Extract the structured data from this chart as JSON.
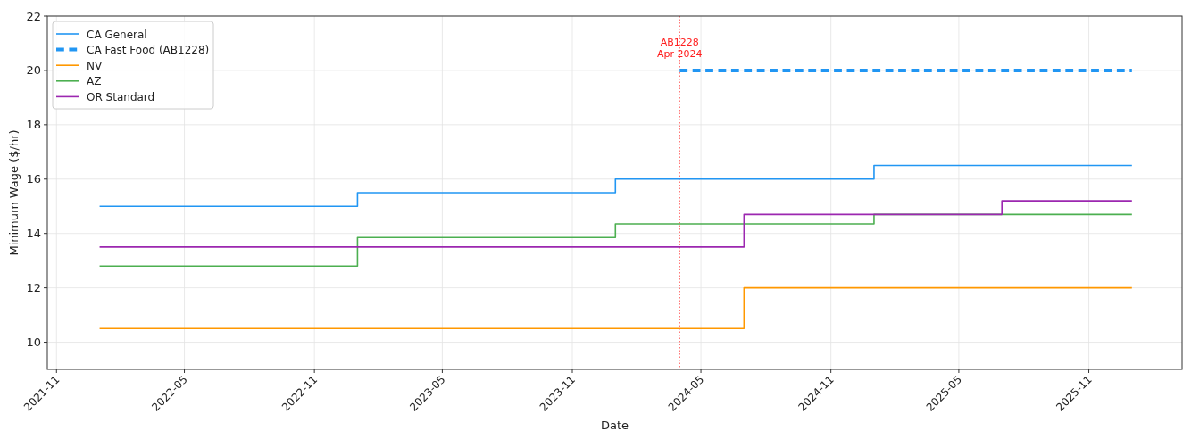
{
  "chart_data": {
    "type": "step",
    "xlabel": "Date",
    "ylabel": "Minimum Wage ($/hr)",
    "xlim": [
      "2021-10-19",
      "2026-03-13"
    ],
    "xticks": [
      {
        "value": "2021-11-01",
        "label": "2021-11"
      },
      {
        "value": "2022-05-01",
        "label": "2022-05"
      },
      {
        "value": "2022-11-01",
        "label": "2022-11"
      },
      {
        "value": "2023-05-01",
        "label": "2023-05"
      },
      {
        "value": "2023-11-01",
        "label": "2023-11"
      },
      {
        "value": "2024-05-01",
        "label": "2024-05"
      },
      {
        "value": "2024-11-01",
        "label": "2024-11"
      },
      {
        "value": "2025-05-01",
        "label": "2025-05"
      },
      {
        "value": "2025-11-01",
        "label": "2025-11"
      }
    ],
    "ylim": [
      9,
      22
    ],
    "yticks": [
      10,
      12,
      14,
      16,
      18,
      20,
      22
    ],
    "grid": true,
    "legend": "top left",
    "series": [
      {
        "name": "CA General",
        "color": "#2196f3",
        "x": [
          "2022-01-01",
          "2023-01-01",
          "2024-01-01",
          "2025-01-01",
          "2026-01-01"
        ],
        "values": [
          15,
          15.5,
          16,
          16.5,
          16.5
        ]
      },
      {
        "name": "CA Fast Food (AB1228)",
        "color": "#2196f3",
        "line_style": "dashed",
        "x": [
          "2024-04-01",
          "2026-01-01"
        ],
        "values": [
          20,
          20
        ]
      },
      {
        "name": "NV",
        "color": "#ff9800",
        "x": [
          "2022-01-01",
          "2024-07-01",
          "2026-01-01"
        ],
        "values": [
          10.5,
          12,
          12
        ]
      },
      {
        "name": "AZ",
        "color": "#4caf50",
        "x": [
          "2022-01-01",
          "2023-01-01",
          "2024-01-01",
          "2025-01-01",
          "2026-01-01"
        ],
        "values": [
          12.8,
          13.85,
          14.35,
          14.7,
          14.7
        ]
      },
      {
        "name": "OR Standard",
        "color": "#9c27b0",
        "x": [
          "2022-01-01",
          "2024-07-01",
          "2025-07-01",
          "2026-01-01"
        ],
        "values": [
          13.5,
          14.7,
          15.2,
          15.2
        ]
      }
    ],
    "ref_lines": [
      {
        "axis": "x",
        "value": "2024-04-01",
        "label": "AB1228\nApr 2024",
        "color": "#ff5555",
        "line_style": "dotted"
      }
    ]
  }
}
